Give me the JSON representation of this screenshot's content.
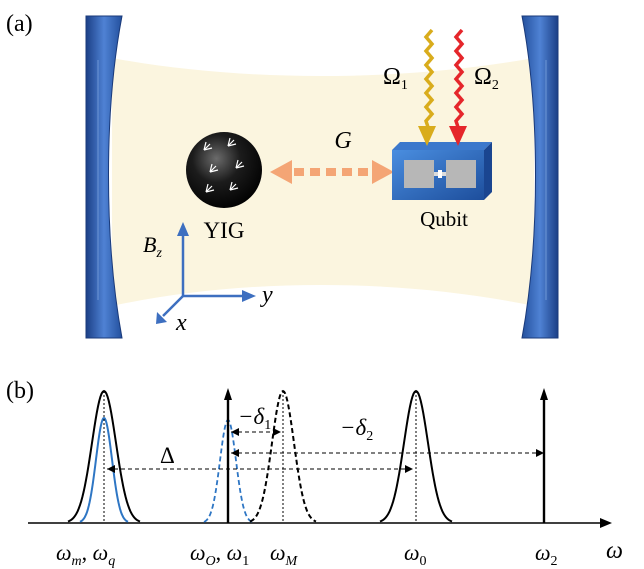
{
  "panel_a": {
    "label": "(a)",
    "coupling_label": "G",
    "yig_label": "YIG",
    "qubit_label": "Qubit",
    "drive1": {
      "symbol": "Ω",
      "sub": "1"
    },
    "drive2": {
      "symbol": "Ω",
      "sub": "2"
    },
    "axes": {
      "z": {
        "symbol": "B",
        "sub": "z"
      },
      "y": "y",
      "x": "x"
    },
    "colors": {
      "mirror": "#2f5fb0",
      "field": "#fbf5df",
      "coupling_arrow": "#f4a575",
      "drive1": "#d9ac1c",
      "drive2": "#e5262b",
      "axes": "#3d6fc0"
    }
  },
  "panel_b": {
    "label": "(b)",
    "axis_label": "ω",
    "delta1": {
      "prefix": "−δ",
      "sub": "1"
    },
    "delta2": {
      "prefix": "−δ",
      "sub": "2"
    },
    "Delta": "Δ",
    "ticks": {
      "t1": {
        "a": "ω",
        "a_sub": "m",
        "b": "ω",
        "b_sub": "q"
      },
      "t2": {
        "a": "ω",
        "a_sub": "O",
        "b": "ω",
        "b_sub": "1"
      },
      "t3": {
        "a": "ω",
        "a_sub": "M"
      },
      "t4": {
        "a": "ω",
        "a_sub": "0"
      },
      "t5": {
        "a": "ω",
        "a_sub": "2"
      }
    },
    "colors": {
      "blue_peak": "#2e76c4",
      "black": "#000000"
    }
  }
}
